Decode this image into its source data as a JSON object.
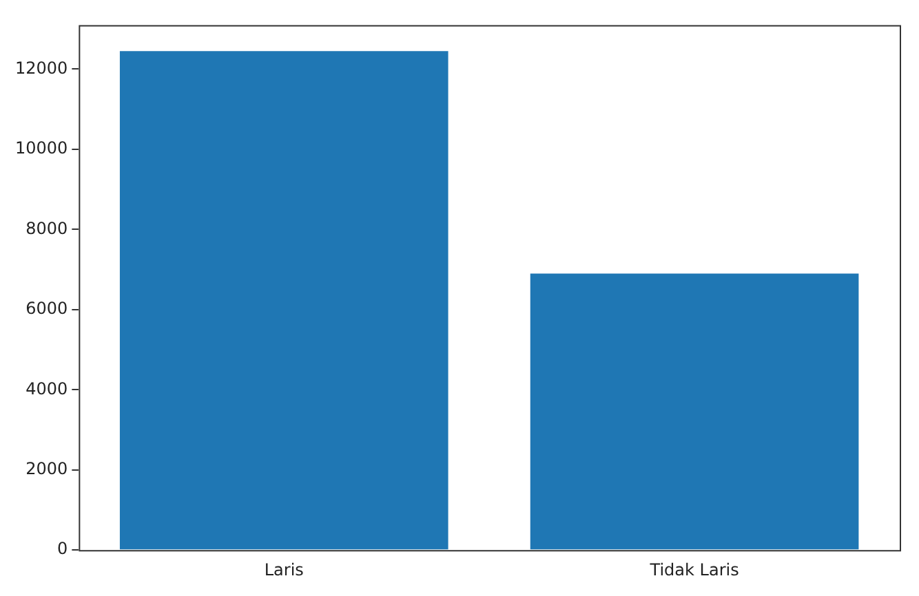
{
  "chart_data": {
    "type": "bar",
    "categories": [
      "Laris",
      "Tidak Laris"
    ],
    "values": [
      12450,
      6900
    ],
    "color": "#1f77b4",
    "ylim": [
      0,
      13100
    ],
    "yticks": [
      0,
      2000,
      4000,
      6000,
      8000,
      10000,
      12000
    ],
    "grid": false,
    "legend": false
  }
}
